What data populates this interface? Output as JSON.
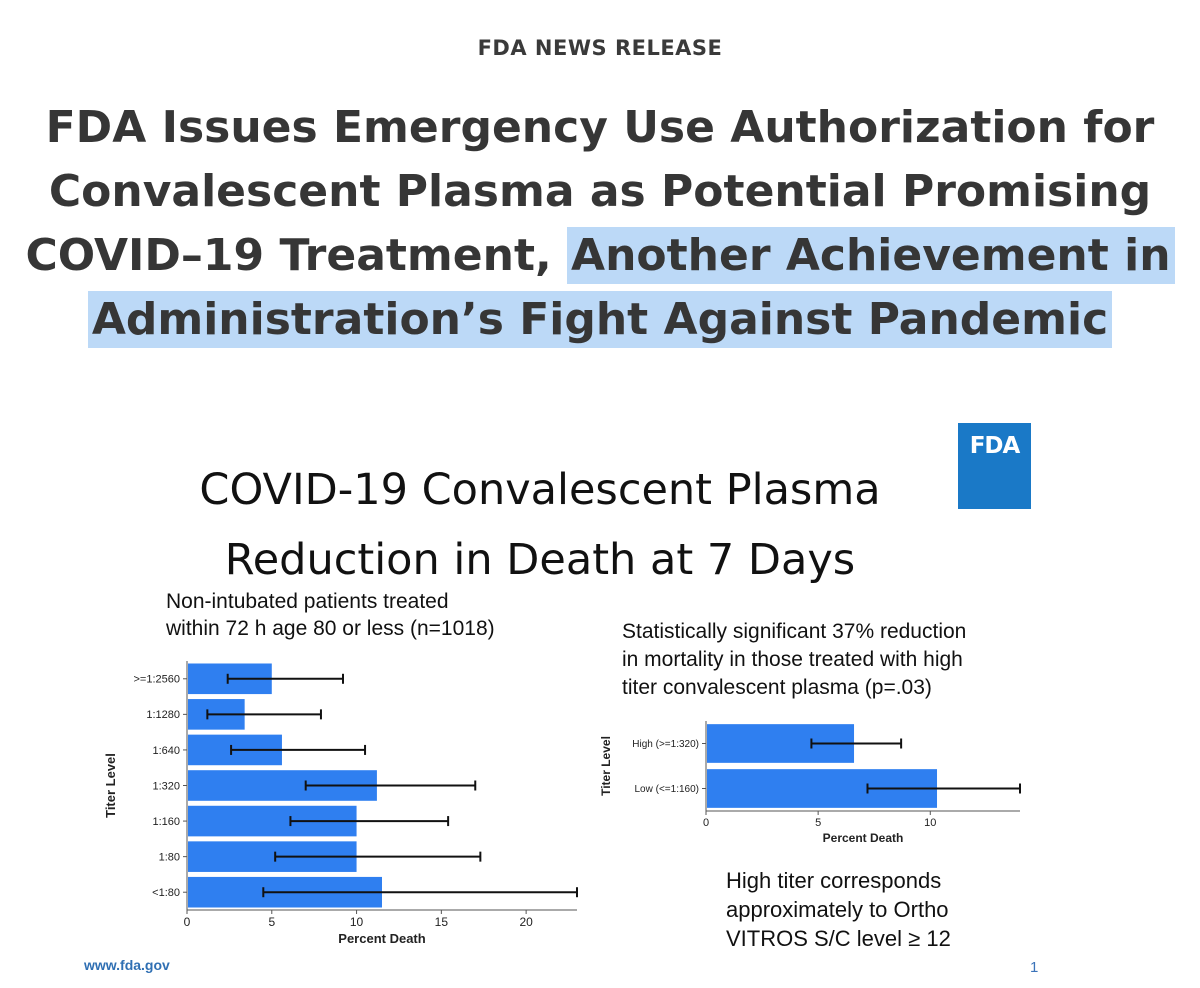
{
  "header": {
    "kicker": "FDA NEWS RELEASE",
    "headline_plain": "FDA Issues Emergency Use Authorization for Convalescent Plasma as Potential Promising COVID–19 Treatment, ",
    "headline_highlight": "Another Achievement in Administration’s Fight Against Pandemic",
    "highlight_color": "#bcd9f7"
  },
  "slide": {
    "title_line1": "COVID-19 Convalescent Plasma",
    "title_line2": "Reduction in Death at 7 Days",
    "logo_text": "FDA",
    "logo_color": "#1a79c7",
    "subtitle_left_line1": "Non-intubated patients treated",
    "subtitle_left_line2": "within 72 h age 80 or less (n=1018)",
    "note_right_line1": "Statistically significant 37% reduction",
    "note_right_line2": "in mortality in those treated with high",
    "note_right_line3": "titer convalescent plasma (p=.03)",
    "note_bottom_line1": "High titer corresponds",
    "note_bottom_line2": "approximately to Ortho",
    "note_bottom_line3": "VITROS S/C level ≥ 12",
    "url": "www.fda.gov",
    "page_number": "1"
  },
  "chart_data": [
    {
      "type": "bar",
      "orientation": "horizontal",
      "title": "",
      "xlabel": "Percent Death",
      "ylabel": "Titer Level",
      "categories": [
        ">=1:2560",
        "1:1280",
        "1:640",
        "1:320",
        "1:160",
        "1:80",
        "<1:80"
      ],
      "values": [
        5.0,
        3.4,
        5.6,
        11.2,
        10.0,
        10.0,
        11.5
      ],
      "error_low": [
        2.4,
        1.2,
        2.6,
        7.0,
        6.1,
        5.2,
        4.5
      ],
      "error_high": [
        9.2,
        7.9,
        10.5,
        17.0,
        15.4,
        17.3,
        23.0
      ],
      "xlim": [
        0,
        23
      ],
      "xticks": [
        0,
        5,
        10,
        15,
        20
      ],
      "bar_color": "#2f7ff0"
    },
    {
      "type": "bar",
      "orientation": "horizontal",
      "title": "",
      "xlabel": "Percent Death",
      "ylabel": "Titer Level",
      "categories": [
        "High (>=1:320)",
        "Low (<=1:160)"
      ],
      "values": [
        6.6,
        10.3
      ],
      "error_low": [
        4.7,
        7.2
      ],
      "error_high": [
        8.7,
        14.0
      ],
      "xlim": [
        0,
        14
      ],
      "xticks": [
        0,
        5,
        10
      ],
      "bar_color": "#2f7ff0"
    }
  ]
}
